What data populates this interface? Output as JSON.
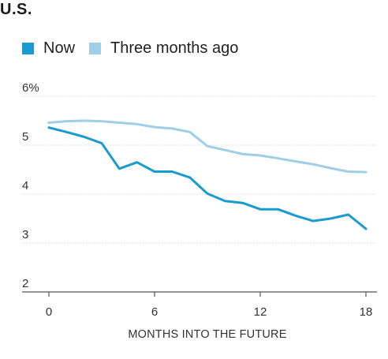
{
  "header": {
    "title": "U.S."
  },
  "chart_data": {
    "type": "line",
    "title": "U.S.",
    "xlabel": "MONTHS INTO THE FUTURE",
    "ylabel": "",
    "x": [
      0,
      1,
      2,
      3,
      4,
      5,
      6,
      7,
      8,
      9,
      10,
      11,
      12,
      13,
      14,
      15,
      16,
      17,
      18
    ],
    "xticks": [
      0,
      6,
      12,
      18
    ],
    "xtick_labels": [
      "0",
      "6",
      "12",
      "18"
    ],
    "xlim": [
      0,
      18
    ],
    "yticks": [
      2,
      3,
      4,
      5,
      6
    ],
    "ytick_labels": [
      "2",
      "3",
      "4",
      "5",
      "6%"
    ],
    "ylim": [
      2,
      6
    ],
    "grid": true,
    "legend_position": "top-left",
    "series": [
      {
        "name": "Now",
        "color": "#1a9bcf",
        "values": [
          5.36,
          5.27,
          5.17,
          5.04,
          4.52,
          4.65,
          4.46,
          4.46,
          4.34,
          4.01,
          3.86,
          3.82,
          3.69,
          3.69,
          3.56,
          3.45,
          3.5,
          3.58,
          3.29
        ]
      },
      {
        "name": "Three months ago",
        "color": "#9ecfe6",
        "values": [
          5.46,
          5.49,
          5.5,
          5.49,
          5.46,
          5.43,
          5.37,
          5.34,
          5.27,
          4.98,
          4.9,
          4.82,
          4.79,
          4.73,
          4.67,
          4.61,
          4.53,
          4.46,
          4.45
        ]
      }
    ]
  }
}
